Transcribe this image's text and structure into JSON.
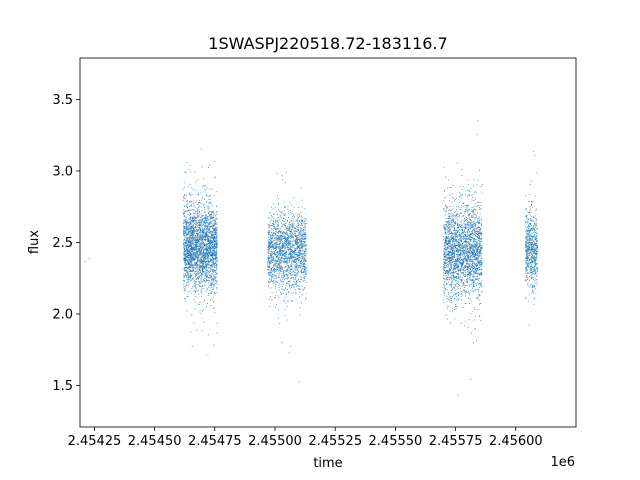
{
  "chart_data": {
    "type": "scatter",
    "title": "1SWASPJ220518.72-183116.7",
    "xlabel": "time",
    "ylabel": "flux",
    "x_offset_label": "1e6",
    "xlim": [
      2.45419,
      2.45625
    ],
    "ylim": [
      1.21,
      3.79
    ],
    "x_ticks": [
      2.45425,
      2.4545,
      2.45475,
      2.455,
      2.45525,
      2.4555,
      2.45575,
      2.456
    ],
    "x_tick_labels": [
      "2.45425",
      "2.45450",
      "2.45475",
      "2.45500",
      "2.45525",
      "2.45550",
      "2.45575",
      "2.45600"
    ],
    "y_ticks": [
      1.5,
      2.0,
      2.5,
      3.0,
      3.5
    ],
    "y_tick_labels": [
      "1.5",
      "2.0",
      "2.5",
      "3.0",
      "3.5"
    ],
    "grid": false,
    "marker_color": "#1f77b4",
    "series": [
      {
        "clusters": [
          {
            "x_range": [
              2.45421,
              2.45423
            ],
            "center_flux": 2.45,
            "spread": 0.06,
            "count": 2
          },
          {
            "x_range": [
              2.45462,
              2.45476
            ],
            "center_flux": 2.47,
            "spread": 0.3,
            "count": 2600
          },
          {
            "x_range": [
              2.45497,
              2.45513
            ],
            "center_flux": 2.44,
            "spread": 0.27,
            "count": 1800
          },
          {
            "x_range": [
              2.4557,
              2.45586
            ],
            "center_flux": 2.45,
            "spread": 0.32,
            "count": 2300
          },
          {
            "x_range": [
              2.45604,
              2.45609
            ],
            "center_flux": 2.46,
            "spread": 0.26,
            "count": 650
          }
        ]
      }
    ]
  }
}
